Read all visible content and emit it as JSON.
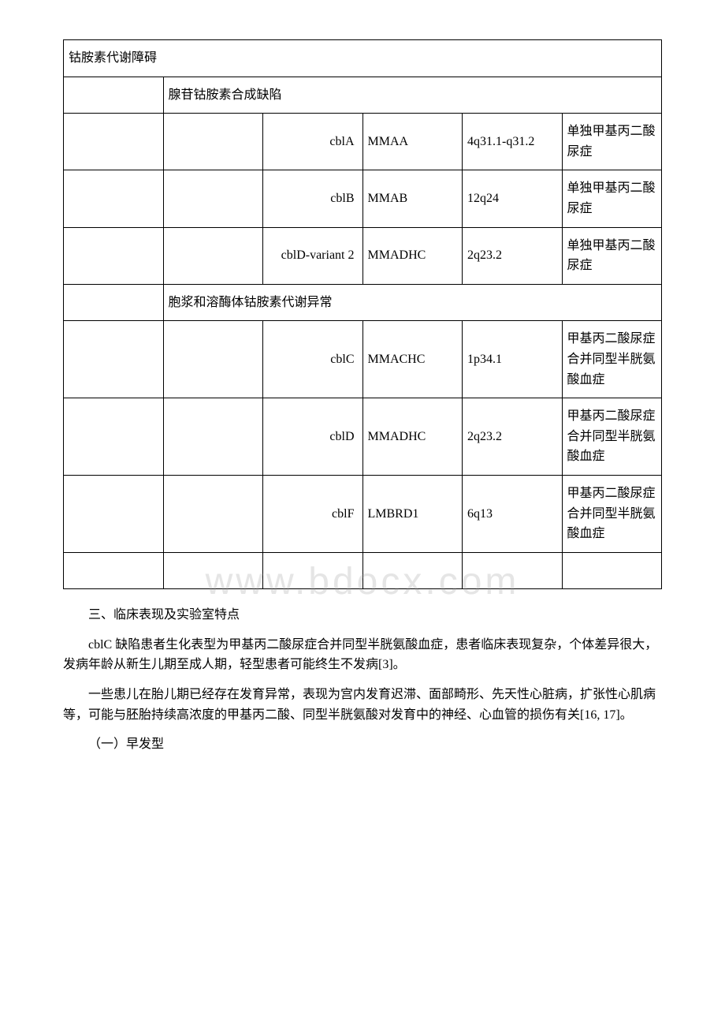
{
  "watermark": "www.bdocx.com",
  "table": {
    "section1_title": "钴胺素代谢障碍",
    "section1_sub_title": "腺苷钴胺素合成缺陷",
    "section2_sub_title": "胞浆和溶酶体钴胺素代谢异常",
    "rows": [
      {
        "c3": "cblA",
        "c4": "MMAA",
        "c5": "4q31.1-q31.2",
        "c6": "单独甲基丙二酸尿症"
      },
      {
        "c3": "cblB",
        "c4": "MMAB",
        "c5": "12q24",
        "c6": "单独甲基丙二酸尿症"
      },
      {
        "c3": "cblD-variant 2",
        "c4": "MMADHC",
        "c5": "2q23.2",
        "c6": "单独甲基丙二酸尿症"
      },
      {
        "c3": "cblC",
        "c4": "MMACHC",
        "c5": "1p34.1",
        "c6": "甲基丙二酸尿症合并同型半胱氨酸血症"
      },
      {
        "c3": "cblD",
        "c4": "MMADHC",
        "c5": "2q23.2",
        "c6": "甲基丙二酸尿症合并同型半胱氨酸血症"
      },
      {
        "c3": "cblF",
        "c4": "LMBRD1",
        "c5": "6q13",
        "c6": "甲基丙二酸尿症合并同型半胱氨酸血症"
      }
    ]
  },
  "paragraphs": {
    "p1": "三、临床表现及实验室特点",
    "p2": "cblC 缺陷患者生化表型为甲基丙二酸尿症合并同型半胱氨酸血症，患者临床表现复杂，个体差异很大，发病年龄从新生儿期至成人期，轻型患者可能终生不发病[3]。",
    "p3": "一些患儿在胎儿期已经存在发育异常，表现为宫内发育迟滞、面部畸形、先天性心脏病，扩张性心肌病等，可能与胚胎持续高浓度的甲基丙二酸、同型半胱氨酸对发育中的神经、心血管的损伤有关[16, 17]。",
    "p4": "（一）早发型"
  }
}
